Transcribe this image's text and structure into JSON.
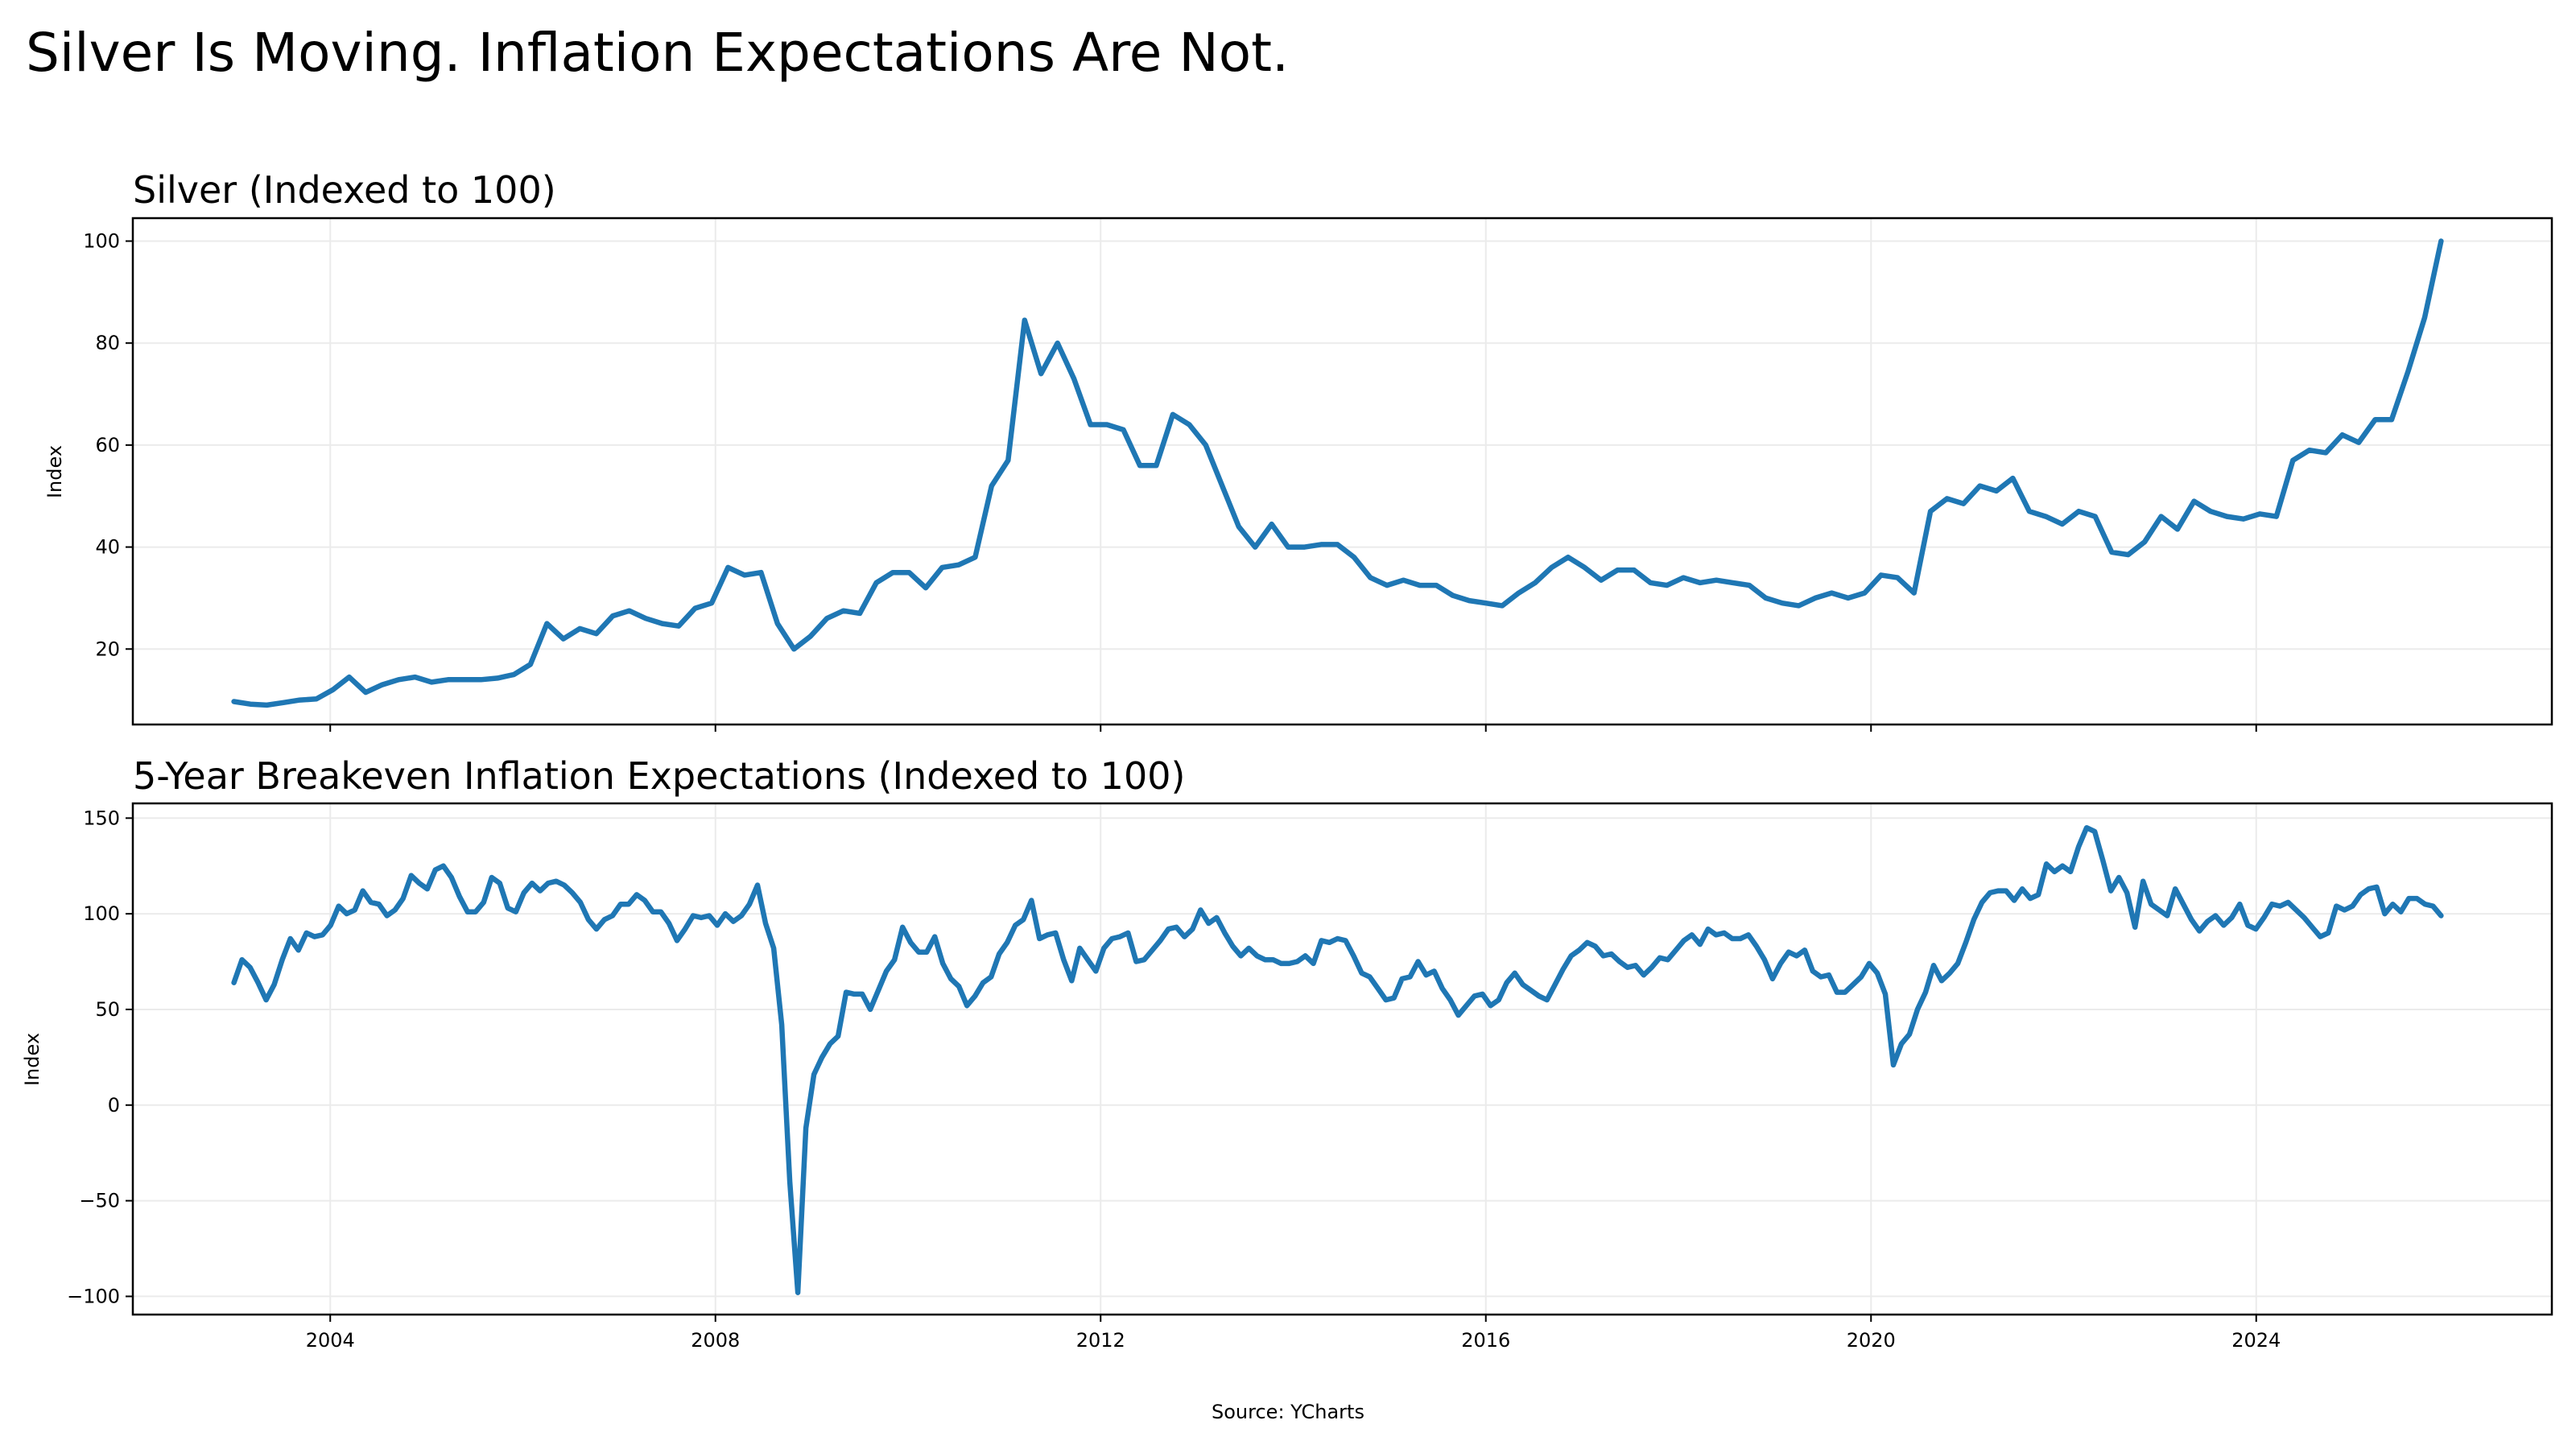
{
  "title": "Silver Is Moving. Inflation Expectations Are Not.",
  "source": "Source: YCharts",
  "line_color": "#1f77b4",
  "chart_data": [
    {
      "type": "line",
      "title": "Silver (Indexed to 100)",
      "xlabel": "",
      "ylabel": "Index",
      "xlim": [
        2001.95,
        2027.07
      ],
      "ylim": [
        5.2,
        104.5
      ],
      "grid": true,
      "x_start": 2003.0,
      "x_end": 2025.92,
      "frequency": "approx. bimonthly, evenly spaced",
      "xticks": [
        2004,
        2008,
        2012,
        2016,
        2020,
        2024
      ],
      "xtick_labels_visible": false,
      "yticks": [
        20,
        40,
        60,
        80,
        100
      ],
      "ytick_labels": [
        "20",
        "40",
        "60",
        "80",
        "100"
      ],
      "values": [
        9.7,
        9.2,
        9,
        9.5,
        10,
        10.2,
        12,
        14.5,
        11.5,
        13,
        14,
        14.5,
        13.5,
        14,
        14,
        14,
        14.3,
        15,
        17,
        25,
        22,
        24,
        23,
        26.5,
        27.5,
        26,
        25,
        24.5,
        28,
        29,
        36,
        34.5,
        35,
        25,
        20,
        22.5,
        26,
        27.5,
        27,
        33,
        35,
        35,
        32,
        36,
        36.5,
        38,
        52,
        57,
        84.5,
        74,
        80,
        73,
        64,
        64,
        63,
        56,
        56,
        66,
        64,
        60,
        52,
        44,
        40,
        44.5,
        40,
        40,
        40.5,
        40.5,
        38,
        34,
        32.5,
        33.5,
        32.5,
        32.5,
        30.5,
        29.5,
        29,
        28.5,
        31,
        33,
        36,
        38,
        36,
        33.5,
        35.5,
        35.5,
        33,
        32.5,
        34,
        33,
        33.5,
        33,
        32.5,
        30,
        29,
        28.5,
        30,
        31,
        30,
        31,
        34.5,
        34,
        31,
        47,
        49.5,
        48.5,
        52,
        51,
        53.5,
        47,
        46,
        44.5,
        47,
        46,
        39,
        38.5,
        41,
        46,
        43.5,
        49,
        47,
        46,
        45.5,
        46.5,
        46,
        57,
        59,
        58.5,
        62,
        60.5,
        65,
        65,
        74.5,
        85,
        100
      ]
    },
    {
      "type": "line",
      "title": "5-Year Breakeven Inflation Expectations (Indexed to 100)",
      "xlabel": "",
      "ylabel": "Index",
      "xlim": [
        2001.95,
        2027.07
      ],
      "ylim": [
        -109.5,
        157.7
      ],
      "grid": true,
      "x_start": 2003.0,
      "x_end": 2025.92,
      "frequency": "monthly, evenly spaced",
      "xticks": [
        2004,
        2008,
        2012,
        2016,
        2020,
        2024
      ],
      "xtick_labels": [
        "2004",
        "2008",
        "2012",
        "2016",
        "2020",
        "2024"
      ],
      "yticks": [
        -100,
        -50,
        0,
        50,
        100,
        150
      ],
      "ytick_labels": [
        "−100",
        "−50",
        "0",
        "50",
        "100",
        "150"
      ],
      "values": [
        64,
        76,
        72,
        64,
        55,
        63,
        76,
        87,
        81,
        90,
        88,
        89,
        94,
        104,
        100,
        102,
        112,
        106,
        105,
        99,
        102,
        108,
        120,
        116,
        113,
        123,
        125,
        119,
        109,
        101,
        101,
        106,
        119,
        116,
        103,
        101,
        111,
        116,
        112,
        116,
        117,
        115,
        111,
        106,
        97,
        92,
        97,
        99,
        105,
        105,
        110,
        107,
        101,
        101,
        95,
        86,
        92,
        99,
        98,
        99,
        94,
        100,
        96,
        99,
        105,
        115,
        95,
        82,
        42,
        -40,
        -98,
        -12,
        16,
        25,
        32,
        36,
        59,
        58,
        58,
        50,
        60,
        70,
        76,
        93,
        85,
        80,
        80,
        88,
        74,
        66,
        62,
        52,
        57,
        64,
        67,
        79,
        85,
        94,
        97,
        107,
        87,
        89,
        90,
        76,
        65,
        82,
        76,
        70,
        82,
        87,
        88,
        90,
        75,
        76,
        81,
        86,
        92,
        93,
        88,
        92,
        102,
        95,
        98,
        90,
        83,
        78,
        82,
        78,
        76,
        76,
        74,
        74,
        75,
        78,
        74,
        86,
        85,
        87,
        86,
        78,
        69,
        67,
        61,
        55,
        56,
        66,
        67,
        75,
        68,
        70,
        61,
        55,
        47,
        52,
        57,
        58,
        52,
        55,
        64,
        69,
        63,
        60,
        57,
        55,
        63,
        71,
        78,
        81,
        85,
        83,
        78,
        79,
        75,
        72,
        73,
        68,
        72,
        77,
        76,
        81,
        86,
        89,
        84,
        92,
        89,
        90,
        87,
        87,
        89,
        83,
        76,
        66,
        74,
        80,
        78,
        81,
        70,
        67,
        68,
        59,
        59,
        63,
        67,
        74,
        69,
        58,
        21,
        32,
        37,
        50,
        59,
        73,
        65,
        69,
        74,
        85,
        97,
        106,
        111,
        112,
        112,
        107,
        113,
        108,
        110,
        126,
        122,
        125,
        122,
        135,
        145,
        143,
        128,
        112,
        119,
        111,
        93,
        117,
        105,
        102,
        99,
        113,
        105,
        97,
        91,
        96,
        99,
        94,
        98,
        105,
        94,
        92,
        98,
        105,
        104,
        106,
        102,
        98,
        93,
        88,
        90,
        104,
        102,
        104,
        110,
        113,
        114,
        100,
        105,
        101,
        108,
        108,
        105,
        104,
        99
      ]
    }
  ]
}
